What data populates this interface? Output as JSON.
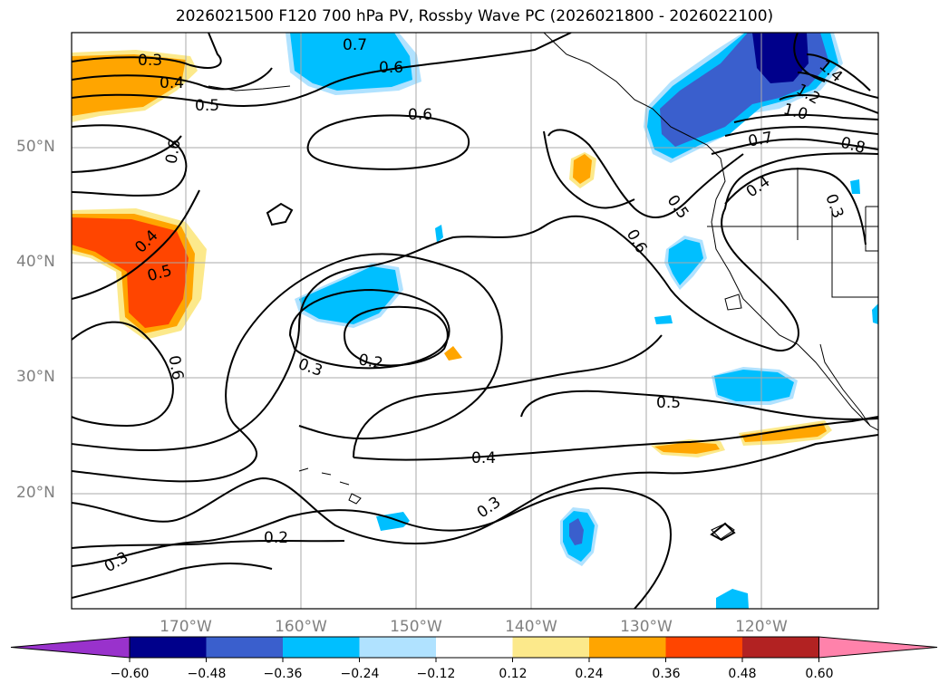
{
  "title": "2026021500 F120 700 hPa PV, Rossby Wave PC (2026021800 - 2026022100)",
  "axes": {
    "lon_labels": [
      "170°W",
      "160°W",
      "150°W",
      "140°W",
      "130°W",
      "120°W"
    ],
    "lat_labels": [
      "50°N",
      "40°N",
      "30°N",
      "20°N"
    ]
  },
  "contour_labels": [
    "0.3",
    "0.4",
    "0.5",
    "0.6",
    "0.7",
    "0.6",
    "0.6",
    "0.6",
    "0.4",
    "0.5",
    "0.6",
    "0.3",
    "0.2",
    "0.5",
    "0.5",
    "0.4",
    "0.3",
    "0.2",
    "0.3",
    "1.0",
    "0.7",
    "0.8",
    "1.2",
    "1.4",
    "0.4",
    "0.3"
  ],
  "colorbar": {
    "ticks": [
      "−0.60",
      "−0.48",
      "−0.36",
      "−0.24",
      "−0.12",
      "0.12",
      "0.24",
      "0.36",
      "0.48",
      "0.60"
    ],
    "colors": {
      "under": "#9932cc",
      "bins": [
        "#00008b",
        "#3a5fcd",
        "#00bfff",
        "#b0e2ff",
        "#ffffff",
        "#fce98b",
        "#ffa500",
        "#ff4500",
        "#b22222"
      ],
      "over": "#ff82ab"
    }
  },
  "shading_colors": {
    "pos_light": "#fce98b",
    "pos_mid": "#ffa500",
    "pos_strong": "#ff4500",
    "neg_light": "#b0e2ff",
    "neg_mid": "#00bfff",
    "neg_strong": "#3a5fcd",
    "neg_extreme": "#00008b"
  }
}
